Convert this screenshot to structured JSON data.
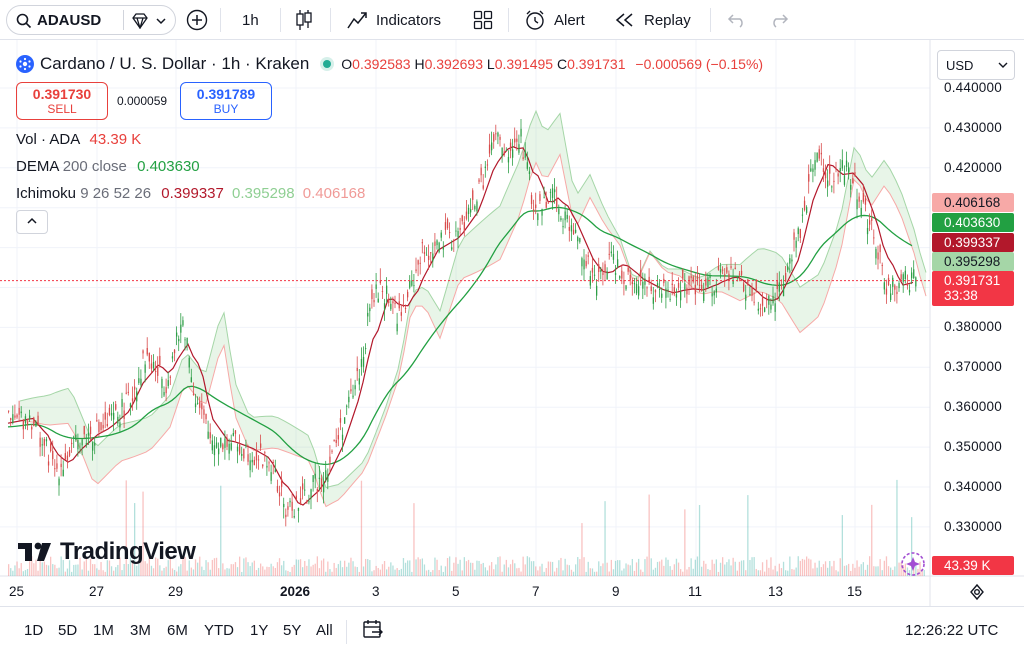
{
  "toolbar": {
    "symbol": "ADAUSD",
    "interval": "1h",
    "indicators": "Indicators",
    "alert": "Alert",
    "replay": "Replay"
  },
  "legend": {
    "title": "Cardano / U. S. Dollar · 1h · Kraken",
    "o_label": "O",
    "o_value": "0.392583",
    "h_label": "H",
    "h_value": "0.392693",
    "l_label": "L",
    "l_value": "0.391495",
    "c_label": "C",
    "c_value": "0.391731",
    "change": "−0.000569 (−0.15%)"
  },
  "trade": {
    "sell_price": "0.391730",
    "sell_label": "SELL",
    "spread": "0.000059",
    "buy_price": "0.391789",
    "buy_label": "BUY"
  },
  "indicators": {
    "vol_label": "Vol · ADA",
    "vol_value": "43.39 K",
    "dema_label": "DEMA",
    "dema_params": "200 close",
    "dema_value": "0.403630",
    "ichi_label": "Ichimoku",
    "ichi_params": "9 26 52 26",
    "ichi_v1": "0.399337",
    "ichi_v2": "0.395298",
    "ichi_v3": "0.406168"
  },
  "currency": "USD",
  "price_axis": [
    "0.440000",
    "0.430000",
    "0.420000",
    "0.410000",
    "0.400000",
    "0.390000",
    "0.380000",
    "0.370000",
    "0.360000",
    "0.350000",
    "0.340000",
    "0.330000"
  ],
  "price_tags": [
    {
      "value": "0.406168",
      "color": "#f7a9a7",
      "text_color": "#131722"
    },
    {
      "value": "0.403630",
      "color": "#22a042",
      "text_color": "#ffffff"
    },
    {
      "value": "0.399337",
      "color": "#b2182b",
      "text_color": "#ffffff"
    },
    {
      "value": "0.395298",
      "color": "#a5d6a7",
      "text_color": "#131722"
    },
    {
      "value": "0.391731",
      "color": "#f23645",
      "text_color": "#ffffff"
    }
  ],
  "countdown": "33:38",
  "volume_tag": "43.39 K",
  "time_axis": [
    "25",
    "27",
    "29",
    "2026",
    "3",
    "5",
    "7",
    "9",
    "11",
    "13",
    "15"
  ],
  "ranges": [
    "1D",
    "5D",
    "1M",
    "3M",
    "6M",
    "YTD",
    "1Y",
    "5Y",
    "All"
  ],
  "clock": "12:26:22 UTC",
  "brand": "TradingView",
  "colors": {
    "up": "#26a69a",
    "down": "#ef5350",
    "candle_up": "#2e9e47",
    "candle_down": "#d84b4b",
    "accent": "#2962ff"
  }
}
